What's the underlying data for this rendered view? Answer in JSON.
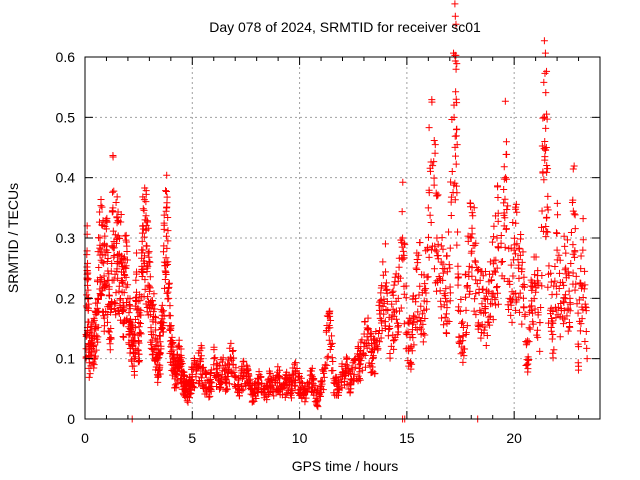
{
  "chart_data": {
    "type": "scatter",
    "title": "Day 078 of 2024, SRMTID for receiver sc01",
    "xlabel": "GPS time / hours",
    "ylabel": "SRMTID / TECUs",
    "xlim": [
      0,
      24
    ],
    "ylim": [
      0,
      0.6
    ],
    "xticks": [
      0,
      5,
      10,
      15,
      20
    ],
    "xtick_labels": [
      "0",
      "5",
      "10",
      "15",
      "20"
    ],
    "yticks": [
      0,
      0.1,
      0.2,
      0.3,
      0.4,
      0.5,
      0.6
    ],
    "ytick_labels": [
      "0",
      "0.1",
      "0.2",
      "0.3",
      "0.4",
      "0.5",
      "0.6"
    ],
    "grid": true,
    "marker": "+",
    "color": "#ff0000",
    "series": [
      {
        "name": "SRMTID",
        "points": [
          [
            0.05,
            0.14
          ],
          [
            0.1,
            0.24
          ],
          [
            0.15,
            0.18
          ],
          [
            0.2,
            0.1
          ],
          [
            0.3,
            0.13
          ],
          [
            0.4,
            0.12
          ],
          [
            0.5,
            0.15
          ],
          [
            0.6,
            0.2
          ],
          [
            0.7,
            0.3
          ],
          [
            0.8,
            0.26
          ],
          [
            0.9,
            0.22
          ],
          [
            1.0,
            0.28
          ],
          [
            1.1,
            0.19
          ],
          [
            1.2,
            0.15
          ],
          [
            1.3,
            0.35
          ],
          [
            1.4,
            0.24
          ],
          [
            1.5,
            0.3
          ],
          [
            1.6,
            0.22
          ],
          [
            1.7,
            0.27
          ],
          [
            1.8,
            0.18
          ],
          [
            1.9,
            0.25
          ],
          [
            2.0,
            0.2
          ],
          [
            2.1,
            0.15
          ],
          [
            2.2,
            0.12
          ],
          [
            2.3,
            0.1
          ],
          [
            2.4,
            0.21
          ],
          [
            2.5,
            0.13
          ],
          [
            2.6,
            0.18
          ],
          [
            2.7,
            0.28
          ],
          [
            2.8,
            0.33
          ],
          [
            2.9,
            0.25
          ],
          [
            3.0,
            0.22
          ],
          [
            3.1,
            0.14
          ],
          [
            3.2,
            0.17
          ],
          [
            3.3,
            0.12
          ],
          [
            3.4,
            0.09
          ],
          [
            3.5,
            0.11
          ],
          [
            3.6,
            0.16
          ],
          [
            3.7,
            0.26
          ],
          [
            3.8,
            0.35
          ],
          [
            3.9,
            0.2
          ],
          [
            4.0,
            0.12
          ],
          [
            4.1,
            0.1
          ],
          [
            4.2,
            0.07
          ],
          [
            4.3,
            0.09
          ],
          [
            4.4,
            0.12
          ],
          [
            4.5,
            0.08
          ],
          [
            4.6,
            0.06
          ],
          [
            4.7,
            0.05
          ],
          [
            4.8,
            0.04
          ],
          [
            4.9,
            0.06
          ],
          [
            5.0,
            0.07
          ],
          [
            5.2,
            0.08
          ],
          [
            5.4,
            0.1
          ],
          [
            5.6,
            0.06
          ],
          [
            5.8,
            0.05
          ],
          [
            6.0,
            0.09
          ],
          [
            6.2,
            0.07
          ],
          [
            6.4,
            0.08
          ],
          [
            6.6,
            0.06
          ],
          [
            6.8,
            0.1
          ],
          [
            7.0,
            0.07
          ],
          [
            7.2,
            0.05
          ],
          [
            7.4,
            0.08
          ],
          [
            7.6,
            0.06
          ],
          [
            7.8,
            0.04
          ],
          [
            8.0,
            0.05
          ],
          [
            8.2,
            0.07
          ],
          [
            8.4,
            0.04
          ],
          [
            8.6,
            0.06
          ],
          [
            8.8,
            0.05
          ],
          [
            9.0,
            0.07
          ],
          [
            9.2,
            0.04
          ],
          [
            9.4,
            0.06
          ],
          [
            9.6,
            0.05
          ],
          [
            9.8,
            0.08
          ],
          [
            10.0,
            0.06
          ],
          [
            10.2,
            0.04
          ],
          [
            10.4,
            0.05
          ],
          [
            10.6,
            0.07
          ],
          [
            10.8,
            0.03
          ],
          [
            11.0,
            0.05
          ],
          [
            11.2,
            0.09
          ],
          [
            11.4,
            0.17
          ],
          [
            11.6,
            0.06
          ],
          [
            11.8,
            0.05
          ],
          [
            12.0,
            0.07
          ],
          [
            12.2,
            0.08
          ],
          [
            12.4,
            0.06
          ],
          [
            12.6,
            0.1
          ],
          [
            12.8,
            0.09
          ],
          [
            13.0,
            0.12
          ],
          [
            13.2,
            0.15
          ],
          [
            13.4,
            0.1
          ],
          [
            13.6,
            0.13
          ],
          [
            13.8,
            0.18
          ],
          [
            14.0,
            0.22
          ],
          [
            14.2,
            0.15
          ],
          [
            14.4,
            0.17
          ],
          [
            14.6,
            0.2
          ],
          [
            14.8,
            0.3
          ],
          [
            15.0,
            0.14
          ],
          [
            15.2,
            0.12
          ],
          [
            15.4,
            0.2
          ],
          [
            15.6,
            0.22
          ],
          [
            15.8,
            0.18
          ],
          [
            16.0,
            0.35
          ],
          [
            16.2,
            0.42
          ],
          [
            16.4,
            0.3
          ],
          [
            16.6,
            0.26
          ],
          [
            16.8,
            0.2
          ],
          [
            17.0,
            0.25
          ],
          [
            17.2,
            0.5
          ],
          [
            17.3,
            0.53
          ],
          [
            17.4,
            0.18
          ],
          [
            17.6,
            0.13
          ],
          [
            17.8,
            0.22
          ],
          [
            18.0,
            0.3
          ],
          [
            18.2,
            0.26
          ],
          [
            18.4,
            0.18
          ],
          [
            18.6,
            0.2
          ],
          [
            18.8,
            0.16
          ],
          [
            19.0,
            0.24
          ],
          [
            19.2,
            0.3
          ],
          [
            19.4,
            0.26
          ],
          [
            19.6,
            0.4
          ],
          [
            19.8,
            0.2
          ],
          [
            20.0,
            0.28
          ],
          [
            20.2,
            0.25
          ],
          [
            20.4,
            0.22
          ],
          [
            20.6,
            0.09
          ],
          [
            20.8,
            0.18
          ],
          [
            21.0,
            0.21
          ],
          [
            21.2,
            0.16
          ],
          [
            21.4,
            0.5
          ],
          [
            21.5,
            0.45
          ],
          [
            21.6,
            0.24
          ],
          [
            21.8,
            0.14
          ],
          [
            22.0,
            0.28
          ],
          [
            22.2,
            0.18
          ],
          [
            22.4,
            0.25
          ],
          [
            22.6,
            0.2
          ],
          [
            22.8,
            0.34
          ],
          [
            23.0,
            0.12
          ],
          [
            23.2,
            0.28
          ],
          [
            23.4,
            0.1
          ]
        ],
        "zero_points": [
          2.2,
          14.8,
          14.9,
          18.3
        ]
      }
    ]
  }
}
